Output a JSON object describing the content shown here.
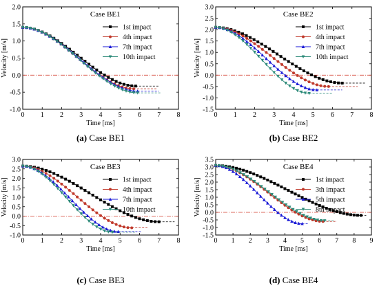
{
  "chart_data": [
    {
      "type": "line",
      "title": "Case BE1",
      "caption_letter": "(a)",
      "caption_text": " Case BE1",
      "xlabel": "Time [ms]",
      "ylabel": "Velocity [m/s]",
      "xlim": [
        0,
        8
      ],
      "ylim": [
        -1.0,
        2.0
      ],
      "xticks": [
        0,
        1,
        2,
        3,
        4,
        5,
        6,
        7,
        8
      ],
      "yticks": [
        -1.0,
        -0.5,
        0.0,
        0.5,
        1.0,
        1.5,
        2.0
      ],
      "ytick_labels": [
        "-1.0",
        "-0.5",
        "0.0",
        "0.5",
        "1.0",
        "1.5",
        "2.0"
      ],
      "reference_line": 0.0,
      "legend_position": "top-right",
      "series": [
        {
          "name": "1st impact",
          "color": "#000000",
          "marker": "square",
          "start": 1.4,
          "end": -0.32,
          "t_end": 5.8,
          "t_stop": 7.0
        },
        {
          "name": "4th impact",
          "color": "#c0392b",
          "marker": "circle",
          "start": 1.4,
          "end": -0.4,
          "t_end": 5.7,
          "t_stop": 6.9
        },
        {
          "name": "7th impact",
          "color": "#1a1ad6",
          "marker": "triangle",
          "start": 1.4,
          "end": -0.47,
          "t_end": 5.9,
          "t_stop": 7.0
        },
        {
          "name": "10th impact",
          "color": "#2e8b7a",
          "marker": "triangle-down",
          "start": 1.4,
          "end": -0.52,
          "t_end": 5.9,
          "t_stop": 7.1
        }
      ]
    },
    {
      "type": "line",
      "title": "Case BE2",
      "caption_letter": "(b)",
      "caption_text": " Case BE2",
      "xlabel": "Time [ms]",
      "ylabel": "Velocity [m/s]",
      "xlim": [
        0,
        8
      ],
      "ylim": [
        -1.5,
        3.0
      ],
      "xticks": [
        0,
        1,
        2,
        3,
        4,
        5,
        6,
        7,
        8
      ],
      "yticks": [
        -1.5,
        -1.0,
        -0.5,
        0.0,
        0.5,
        1.0,
        1.5,
        2.0,
        2.5,
        3.0
      ],
      "ytick_labels": [
        "-1.5",
        "-1.0",
        "-0.5",
        "0.0",
        "0.5",
        "1.0",
        "1.5",
        "2.0",
        "2.5",
        "3.0"
      ],
      "reference_line": 0.0,
      "legend_position": "top-right",
      "series": [
        {
          "name": "1st impact",
          "color": "#000000",
          "marker": "square",
          "start": 2.1,
          "end": -0.35,
          "t_end": 6.5,
          "t_stop": 7.7
        },
        {
          "name": "4th impact",
          "color": "#c0392b",
          "marker": "circle",
          "start": 2.1,
          "end": -0.5,
          "t_end": 5.8,
          "t_stop": 7.3
        },
        {
          "name": "7th impact",
          "color": "#1a1ad6",
          "marker": "triangle",
          "start": 2.1,
          "end": -0.65,
          "t_end": 5.2,
          "t_stop": 6.5
        },
        {
          "name": "10th impact",
          "color": "#2e8b7a",
          "marker": "triangle-down",
          "start": 2.1,
          "end": -0.8,
          "t_end": 4.8,
          "t_stop": 6.0
        }
      ]
    },
    {
      "type": "line",
      "title": "Case BE3",
      "caption_letter": "(c)",
      "caption_text": " Case BE3",
      "xlabel": "Time [ms]",
      "ylabel": "Velocity [m/s]",
      "xlim": [
        0,
        8
      ],
      "ylim": [
        -1.0,
        3.0
      ],
      "xticks": [
        0,
        1,
        2,
        3,
        4,
        5,
        6,
        7,
        8
      ],
      "yticks": [
        -1.0,
        -0.5,
        0.0,
        0.5,
        1.0,
        1.5,
        2.0,
        2.5,
        3.0
      ],
      "ytick_labels": [
        "-1.0",
        "-0.5",
        "0.0",
        "0.5",
        "1.0",
        "1.5",
        "2.0",
        "2.5",
        "3.0"
      ],
      "reference_line": 0.0,
      "legend_position": "top-right",
      "series": [
        {
          "name": "1st impact",
          "color": "#000000",
          "marker": "square",
          "start": 2.65,
          "end": -0.3,
          "t_end": 7.0,
          "t_stop": 7.8
        },
        {
          "name": "4th impact",
          "color": "#c0392b",
          "marker": "circle",
          "start": 2.65,
          "end": -0.62,
          "t_end": 5.6,
          "t_stop": 6.4
        },
        {
          "name": "7th impact",
          "color": "#1a1ad6",
          "marker": "triangle",
          "start": 2.65,
          "end": -0.82,
          "t_end": 4.9,
          "t_stop": 6.1
        },
        {
          "name": "10th impact",
          "color": "#2e8b7a",
          "marker": "triangle-down",
          "start": 2.65,
          "end": -0.85,
          "t_end": 4.6,
          "t_stop": 5.8
        }
      ]
    },
    {
      "type": "line",
      "title": "Case BE4",
      "caption_letter": "(d)",
      "caption_text": " Case BE4",
      "xlabel": "Time [ms]",
      "ylabel": "Velocity [m/s]",
      "xlim": [
        0,
        9
      ],
      "ylim": [
        -1.5,
        3.5
      ],
      "xticks": [
        0,
        1,
        2,
        3,
        4,
        5,
        6,
        7,
        8,
        9
      ],
      "yticks": [
        -1.5,
        -1.0,
        -0.5,
        0.0,
        0.5,
        1.0,
        1.5,
        2.0,
        2.5,
        3.0,
        3.5
      ],
      "ytick_labels": [
        "-1.5",
        "-1.0",
        "-0.5",
        "0.0",
        "0.5",
        "1.0",
        "1.5",
        "2.0",
        "2.5",
        "3.0",
        "3.5"
      ],
      "reference_line": 0.0,
      "legend_position": "top-right",
      "series": [
        {
          "name": "1st impact",
          "color": "#000000",
          "marker": "square",
          "start": 3.1,
          "end": -0.2,
          "t_end": 8.4,
          "t_stop": 8.7
        },
        {
          "name": "3th impact",
          "color": "#c0392b",
          "marker": "circle",
          "start": 3.1,
          "end": -0.6,
          "t_end": 6.2,
          "t_stop": 7.0
        },
        {
          "name": "5th impact",
          "color": "#1a1ad6",
          "marker": "triangle",
          "start": 3.1,
          "end": -0.75,
          "t_end": 5.0,
          "t_stop": 5.4
        },
        {
          "name": "8th impact",
          "color": "#2e8b7a",
          "marker": "triangle-down",
          "start": 3.1,
          "end": -0.55,
          "t_end": 6.3,
          "t_stop": 6.9
        }
      ]
    }
  ]
}
